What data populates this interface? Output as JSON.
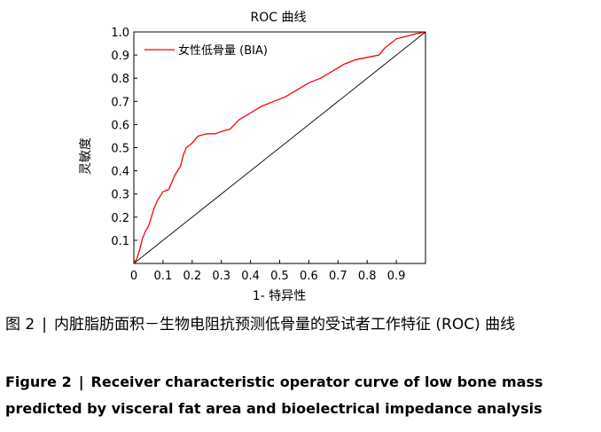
{
  "chart_data": {
    "type": "line",
    "title": "ROC 曲线",
    "xlabel": "1- 特异性",
    "ylabel": "灵敏度",
    "xlim": [
      0,
      1
    ],
    "ylim": [
      0,
      1
    ],
    "x_ticks": [
      "0",
      "0.1",
      "0.2",
      "0.3",
      "0.4",
      "0.5",
      "0.6",
      "0.7",
      "0.8",
      "0.9"
    ],
    "y_ticks": [
      "0.1",
      "0.2",
      "0.3",
      "0.4",
      "0.5",
      "0.6",
      "0.7",
      "0.8",
      "0.9",
      "1.0"
    ],
    "legend": "top-left",
    "grid": false,
    "series": [
      {
        "name": "女性低骨量 (BIA)",
        "color": "#ff0000",
        "x": [
          0,
          0.01,
          0.02,
          0.03,
          0.04,
          0.05,
          0.06,
          0.07,
          0.08,
          0.09,
          0.1,
          0.12,
          0.14,
          0.15,
          0.16,
          0.17,
          0.18,
          0.2,
          0.22,
          0.25,
          0.28,
          0.3,
          0.33,
          0.36,
          0.4,
          0.44,
          0.48,
          0.52,
          0.56,
          0.6,
          0.64,
          0.68,
          0.72,
          0.76,
          0.8,
          0.84,
          0.86,
          0.88,
          0.9,
          0.93,
          0.96,
          1.0
        ],
        "y": [
          0,
          0.02,
          0.06,
          0.11,
          0.14,
          0.16,
          0.2,
          0.24,
          0.27,
          0.29,
          0.31,
          0.32,
          0.38,
          0.4,
          0.42,
          0.47,
          0.5,
          0.52,
          0.55,
          0.56,
          0.56,
          0.57,
          0.58,
          0.62,
          0.65,
          0.68,
          0.7,
          0.72,
          0.75,
          0.78,
          0.8,
          0.83,
          0.86,
          0.88,
          0.89,
          0.9,
          0.93,
          0.95,
          0.97,
          0.98,
          0.99,
          1.0
        ]
      },
      {
        "name": "",
        "color": "#000000",
        "x": [
          0,
          1
        ],
        "y": [
          0,
          1
        ]
      }
    ]
  },
  "caption": {
    "cn_label": "图 2",
    "cn_text": "内脏脂肪面积－生物电阻抗预测低骨量的受试者工作特征 (ROC) 曲线",
    "en_label": "Figure 2",
    "en_text": "Receiver characteristic operator curve of low bone mass predicted by visceral fat area and bioelectrical impedance analysis"
  }
}
